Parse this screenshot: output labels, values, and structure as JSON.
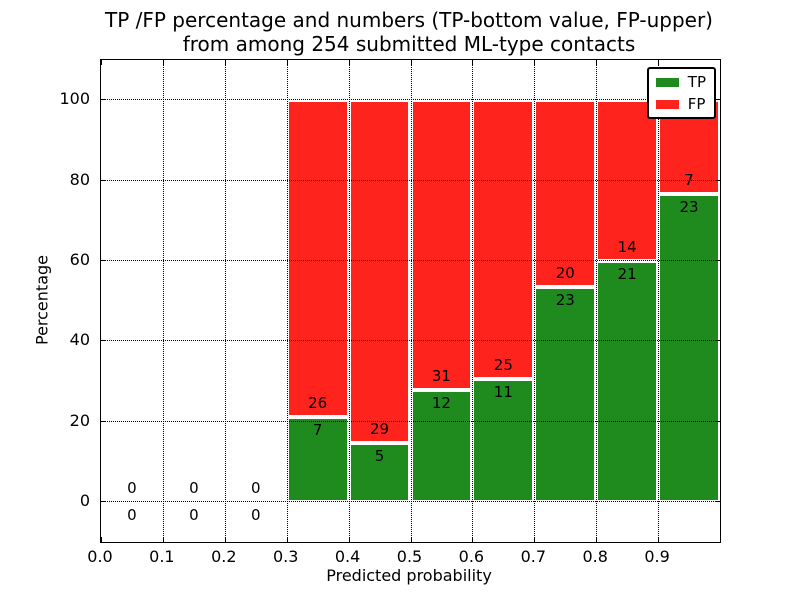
{
  "figure": {
    "title_line1": "TP /FP percentage and numbers (TP-bottom value, FP-upper)",
    "title_line2": "from among 254 submitted ML-type contacts",
    "xlabel": "Predicted probability",
    "ylabel": "Percentage"
  },
  "legend": {
    "items": [
      {
        "label": "TP",
        "color": "#1f8b1f"
      },
      {
        "label": "FP",
        "color": "#ff231d"
      }
    ]
  },
  "chart_data": {
    "type": "bar",
    "stacked": true,
    "title": "TP /FP percentage and numbers (TP-bottom value, FP-upper) from among 254 submitted ML-type contacts",
    "xlabel": "Predicted probability",
    "ylabel": "Percentage",
    "xlim": [
      0.0,
      1.0
    ],
    "ylim": [
      -10,
      110
    ],
    "grid": true,
    "legend_position": "upper right",
    "total_contacts": 254,
    "xticks": [
      "0.0",
      "0.1",
      "0.2",
      "0.3",
      "0.4",
      "0.5",
      "0.6",
      "0.7",
      "0.8",
      "0.9"
    ],
    "yticks": [
      0,
      20,
      40,
      60,
      80,
      100
    ],
    "series_note": "green TP percentage bottom segment, red FP percentage upper segment, labels are raw counts",
    "bins": [
      {
        "x0": 0.0,
        "x1": 0.1,
        "tp_count": 0,
        "fp_count": 0,
        "tp_pct": 0,
        "fp_pct": 0
      },
      {
        "x0": 0.1,
        "x1": 0.2,
        "tp_count": 0,
        "fp_count": 0,
        "tp_pct": 0,
        "fp_pct": 0
      },
      {
        "x0": 0.2,
        "x1": 0.3,
        "tp_count": 0,
        "fp_count": 0,
        "tp_pct": 0,
        "fp_pct": 0
      },
      {
        "x0": 0.3,
        "x1": 0.4,
        "tp_count": 7,
        "fp_count": 26,
        "tp_pct": 21.21,
        "fp_pct": 78.79
      },
      {
        "x0": 0.4,
        "x1": 0.5,
        "tp_count": 5,
        "fp_count": 29,
        "tp_pct": 14.71,
        "fp_pct": 85.29
      },
      {
        "x0": 0.5,
        "x1": 0.6,
        "tp_count": 12,
        "fp_count": 31,
        "tp_pct": 27.91,
        "fp_pct": 72.09
      },
      {
        "x0": 0.6,
        "x1": 0.7,
        "tp_count": 11,
        "fp_count": 25,
        "tp_pct": 30.56,
        "fp_pct": 69.44
      },
      {
        "x0": 0.7,
        "x1": 0.8,
        "tp_count": 23,
        "fp_count": 20,
        "tp_pct": 53.49,
        "fp_pct": 46.51
      },
      {
        "x0": 0.8,
        "x1": 0.9,
        "tp_count": 21,
        "fp_count": 14,
        "tp_pct": 60.0,
        "fp_pct": 40.0
      },
      {
        "x0": 0.9,
        "x1": 1.0,
        "tp_count": 23,
        "fp_count": 7,
        "tp_pct": 76.67,
        "fp_pct": 23.33
      }
    ],
    "colors": {
      "tp": "#1f8b1f",
      "fp": "#ff231d",
      "grid": "#000000",
      "background": "#ffffff"
    }
  }
}
